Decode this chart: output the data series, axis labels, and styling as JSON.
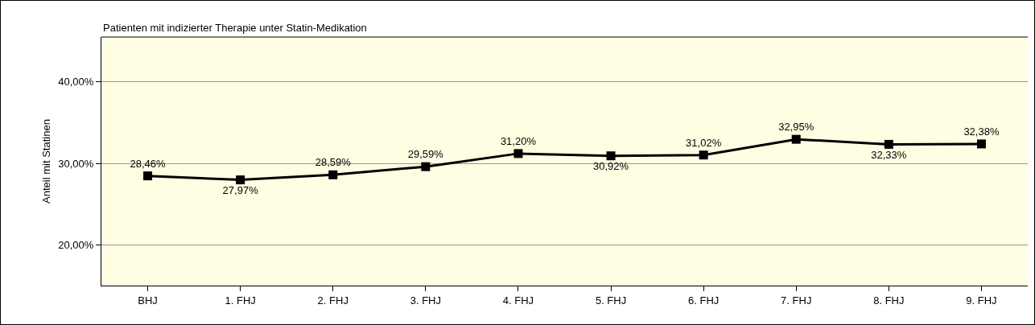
{
  "chart_data": {
    "type": "line",
    "title": "Patienten mit indizierter Therapie unter Statin-Medikation",
    "ylabel": "Anteil mit Statinen",
    "categories": [
      "BHJ",
      "1. FHJ",
      "2. FHJ",
      "3. FHJ",
      "4. FHJ",
      "5. FHJ",
      "6. FHJ",
      "7. FHJ",
      "8. FHJ",
      "9. FHJ"
    ],
    "series": [
      {
        "color": "#000000",
        "values": [
          28.46,
          27.97,
          28.59,
          29.59,
          31.2,
          30.92,
          31.02,
          32.95,
          32.33,
          32.38
        ],
        "value_labels": [
          "28,46%",
          "27,97%",
          "28,59%",
          "29,59%",
          "31,20%",
          "30,92%",
          "31,02%",
          "32,95%",
          "32,33%",
          "32,38%"
        ]
      }
    ],
    "ylim": [
      15,
      45.5
    ],
    "yticks": [
      {
        "value": 20,
        "label": "20,00%"
      },
      {
        "value": 30,
        "label": "30,00%"
      },
      {
        "value": 40,
        "label": "40,00%"
      }
    ],
    "grid": "y",
    "legend": false,
    "marker": "square",
    "line_style": "solid"
  }
}
